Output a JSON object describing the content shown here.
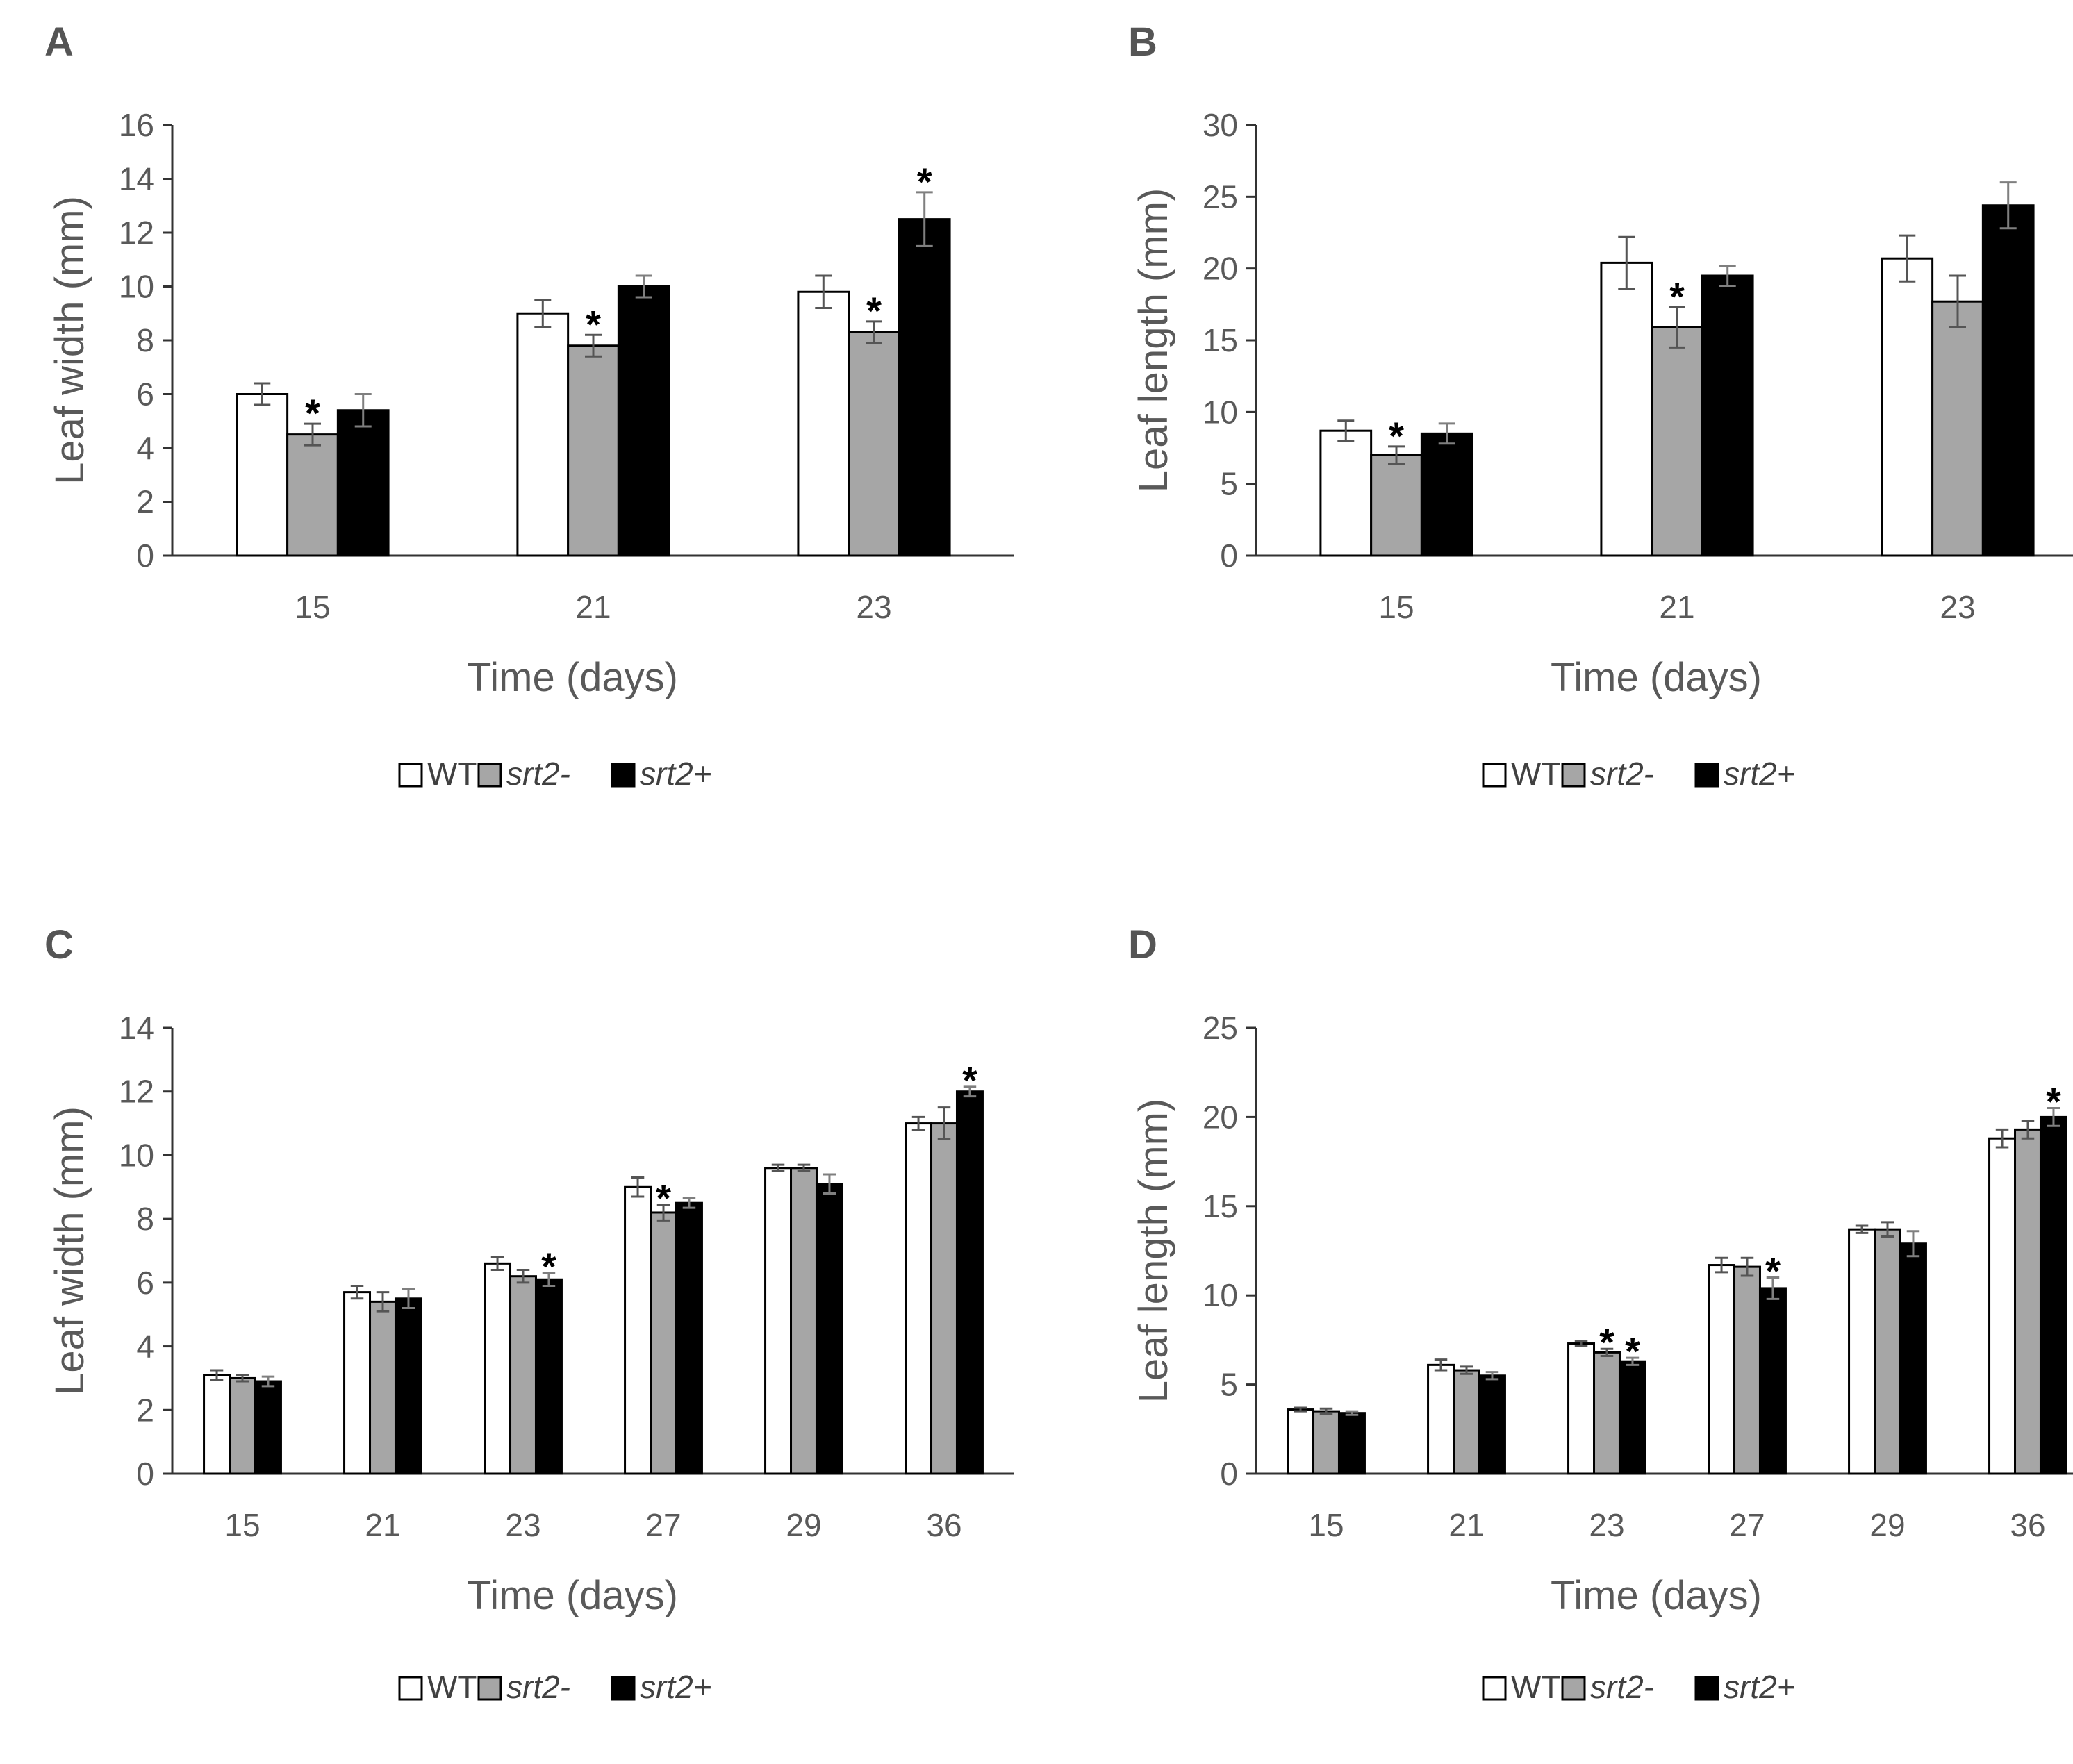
{
  "figure": {
    "legend": [
      "WT",
      "srt2-",
      "srt2+"
    ],
    "series_colors": {
      "WT": "#ffffff",
      "srt2-": "#a6a6a6",
      "srt2+": "#000000"
    }
  },
  "chart_data": [
    {
      "panel": "A",
      "type": "bar",
      "title": "",
      "xlabel": "Time (days)",
      "ylabel": "Leaf width (mm)",
      "ylim": [
        0,
        16
      ],
      "yticks": [
        0,
        2,
        4,
        6,
        8,
        10,
        12,
        14,
        16
      ],
      "categories": [
        "15",
        "21",
        "23"
      ],
      "series": [
        {
          "name": "WT",
          "values": [
            6.0,
            9.0,
            9.8
          ],
          "errors": [
            0.4,
            0.5,
            0.6
          ],
          "sig": [
            false,
            false,
            false
          ]
        },
        {
          "name": "srt2-",
          "values": [
            4.5,
            7.8,
            8.3
          ],
          "errors": [
            0.4,
            0.4,
            0.4
          ],
          "sig": [
            true,
            true,
            true
          ]
        },
        {
          "name": "srt2+",
          "values": [
            5.4,
            10.0,
            12.5
          ],
          "errors": [
            0.6,
            0.4,
            1.0
          ],
          "sig": [
            false,
            false,
            true
          ]
        }
      ],
      "legend": [
        "WT",
        "srt2-",
        "srt2+"
      ]
    },
    {
      "panel": "B",
      "type": "bar",
      "title": "",
      "xlabel": "Time (days)",
      "ylabel": "Leaf length (mm)",
      "ylim": [
        0,
        30
      ],
      "yticks": [
        0,
        5,
        10,
        15,
        20,
        25,
        30
      ],
      "categories": [
        "15",
        "21",
        "23"
      ],
      "series": [
        {
          "name": "WT",
          "values": [
            8.7,
            20.4,
            20.7
          ],
          "errors": [
            0.7,
            1.8,
            1.6
          ],
          "sig": [
            false,
            false,
            false
          ]
        },
        {
          "name": "srt2-",
          "values": [
            7.0,
            15.9,
            17.7
          ],
          "errors": [
            0.6,
            1.4,
            1.8
          ],
          "sig": [
            true,
            true,
            false
          ]
        },
        {
          "name": "srt2+",
          "values": [
            8.5,
            19.5,
            24.4
          ],
          "errors": [
            0.7,
            0.7,
            1.6
          ],
          "sig": [
            false,
            false,
            false
          ]
        }
      ],
      "legend": [
        "WT",
        "srt2-",
        "srt2+"
      ]
    },
    {
      "panel": "C",
      "type": "bar",
      "title": "",
      "xlabel": "Time (days)",
      "ylabel": "Leaf width (mm)",
      "ylim": [
        0,
        14
      ],
      "yticks": [
        0,
        2,
        4,
        6,
        8,
        10,
        12,
        14
      ],
      "categories": [
        "15",
        "21",
        "23",
        "27",
        "29",
        "36"
      ],
      "series": [
        {
          "name": "WT",
          "values": [
            3.1,
            5.7,
            6.6,
            9.0,
            9.6,
            11.0
          ],
          "errors": [
            0.15,
            0.2,
            0.2,
            0.3,
            0.1,
            0.2
          ],
          "sig": [
            false,
            false,
            false,
            false,
            false,
            false
          ]
        },
        {
          "name": "srt2-",
          "values": [
            3.0,
            5.4,
            6.2,
            8.2,
            9.6,
            11.0
          ],
          "errors": [
            0.1,
            0.3,
            0.2,
            0.25,
            0.1,
            0.5
          ],
          "sig": [
            false,
            false,
            false,
            true,
            false,
            false
          ]
        },
        {
          "name": "srt2+",
          "values": [
            2.9,
            5.5,
            6.1,
            8.5,
            9.1,
            12.0
          ],
          "errors": [
            0.15,
            0.3,
            0.2,
            0.15,
            0.3,
            0.15
          ],
          "sig": [
            false,
            false,
            true,
            false,
            false,
            true
          ]
        }
      ],
      "legend": [
        "WT",
        "srt2-",
        "srt2+"
      ]
    },
    {
      "panel": "D",
      "type": "bar",
      "title": "",
      "xlabel": "Time (days)",
      "ylabel": "Leaf length (mm)",
      "ylim": [
        0,
        25
      ],
      "yticks": [
        0,
        5,
        10,
        15,
        20,
        25
      ],
      "categories": [
        "15",
        "21",
        "23",
        "27",
        "29",
        "36"
      ],
      "series": [
        {
          "name": "WT",
          "values": [
            3.6,
            6.1,
            7.3,
            11.7,
            13.7,
            18.8
          ],
          "errors": [
            0.1,
            0.3,
            0.15,
            0.4,
            0.2,
            0.5
          ],
          "sig": [
            false,
            false,
            false,
            false,
            false,
            false
          ]
        },
        {
          "name": "srt2-",
          "values": [
            3.5,
            5.8,
            6.8,
            11.6,
            13.7,
            19.3
          ],
          "errors": [
            0.15,
            0.2,
            0.2,
            0.5,
            0.4,
            0.5
          ],
          "sig": [
            false,
            false,
            true,
            false,
            false,
            false
          ]
        },
        {
          "name": "srt2+",
          "values": [
            3.4,
            5.5,
            6.3,
            10.4,
            12.9,
            20.0
          ],
          "errors": [
            0.1,
            0.2,
            0.2,
            0.6,
            0.7,
            0.5
          ],
          "sig": [
            false,
            false,
            true,
            true,
            false,
            true
          ]
        }
      ],
      "legend": [
        "WT",
        "srt2-",
        "srt2+"
      ]
    }
  ]
}
